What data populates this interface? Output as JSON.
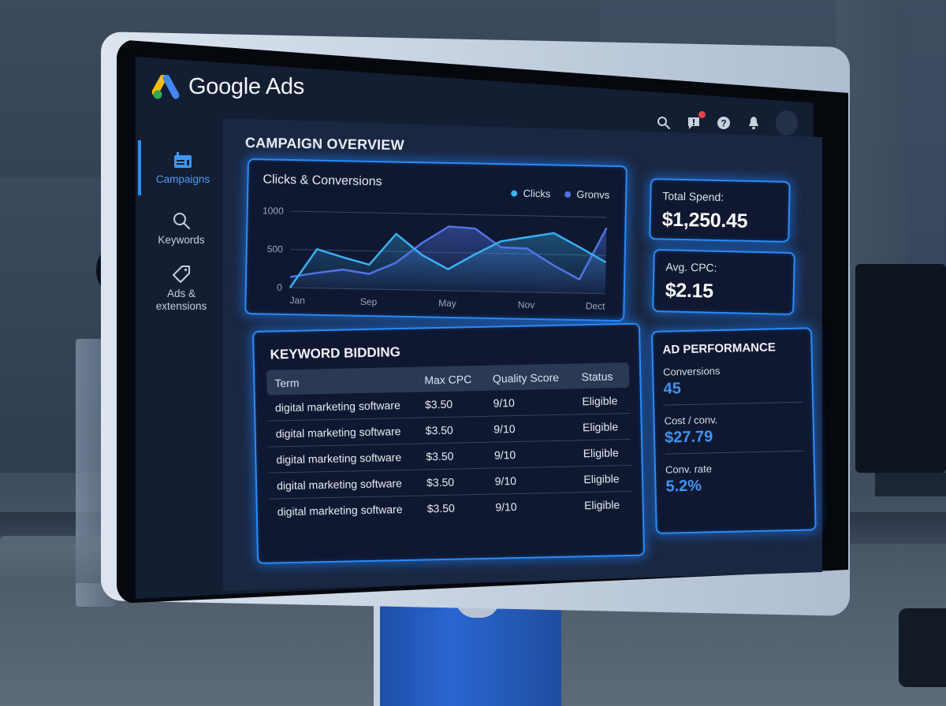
{
  "app": {
    "brand": "Google Ads",
    "brand_colors": {
      "blue": "#4285f4",
      "yellow": "#fbbc04",
      "green": "#34a853"
    }
  },
  "topbar": {
    "icons": [
      {
        "name": "search-icon",
        "glyph": "⚲"
      },
      {
        "name": "feedback-icon",
        "glyph": "!",
        "has_badge": true
      },
      {
        "name": "help-icon",
        "glyph": "?"
      },
      {
        "name": "bell-icon",
        "glyph": "🔔"
      }
    ],
    "badge_color": "#e64545"
  },
  "sidebar": {
    "items": [
      {
        "label": "Campaigns",
        "icon": "campaign-icon",
        "active": true
      },
      {
        "label": "Keywords",
        "icon": "search-icon",
        "active": false
      },
      {
        "label": "Ads & extensions",
        "icon": "tag-icon",
        "active": false
      }
    ],
    "accent": "#2c8ef2"
  },
  "page": {
    "title": "CAMPAIGN OVERVIEW"
  },
  "chart_card": {
    "title": "Clicks & Conversions",
    "legend": [
      {
        "label": "Clicks",
        "color": "#3ab0f5"
      },
      {
        "label": "Gronvs",
        "color": "#4f73e6"
      }
    ]
  },
  "chart_data": {
    "type": "line",
    "title": "Clicks & Conversions",
    "xlabel": "",
    "ylabel": "",
    "ylim": [
      0,
      1000
    ],
    "yticks": [
      "1000",
      "500",
      "0"
    ],
    "x_tick_labels": [
      "Jan",
      "Sep",
      "May",
      "Nov",
      "Dect"
    ],
    "grid": true,
    "legend_position": "top-right",
    "x": [
      0,
      1,
      2,
      3,
      4,
      5,
      6,
      7,
      8,
      9,
      10,
      11,
      12
    ],
    "series": [
      {
        "name": "Clicks",
        "color": "#3ab0f5",
        "values": [
          0,
          510,
          410,
          320,
          730,
          460,
          280,
          480,
          660,
          720,
          780,
          600,
          410
        ]
      },
      {
        "name": "Gronvs",
        "color": "#4f73e6",
        "values": [
          140,
          200,
          250,
          200,
          350,
          620,
          840,
          820,
          580,
          570,
          360,
          180,
          860
        ]
      }
    ]
  },
  "stats": {
    "total_spend": {
      "label": "Total Spend:",
      "value": "$1,250.45"
    },
    "avg_cpc": {
      "label": "Avg. CPC:",
      "value": "$2.15"
    }
  },
  "keyword_bidding": {
    "title": "KEYWORD BIDDING",
    "columns": [
      "Term",
      "Max CPC",
      "Quality Score",
      "Status"
    ],
    "rows": [
      {
        "term": "digital marketing software",
        "max_cpc": "$3.50",
        "quality_score": "9/10",
        "status": "Eligible"
      },
      {
        "term": "digital marketing software",
        "max_cpc": "$3.50",
        "quality_score": "9/10",
        "status": "Eligible"
      },
      {
        "term": "digital marketing software",
        "max_cpc": "$3.50",
        "quality_score": "9/10",
        "status": "Eligible"
      },
      {
        "term": "digital marketing software",
        "max_cpc": "$3.50",
        "quality_score": "9/10",
        "status": "Eligible"
      },
      {
        "term": "digital marketing software",
        "max_cpc": "$3.50",
        "quality_score": "9/10",
        "status": "Eligible"
      }
    ]
  },
  "ad_performance": {
    "title": "AD PERFORMANCE",
    "metrics": [
      {
        "label": "Conversions",
        "value": "45"
      },
      {
        "label": "Cost / conv.",
        "value": "$27.79"
      },
      {
        "label": "Conv. rate",
        "value": "5.2%"
      }
    ],
    "value_color": "#3e94f0"
  }
}
